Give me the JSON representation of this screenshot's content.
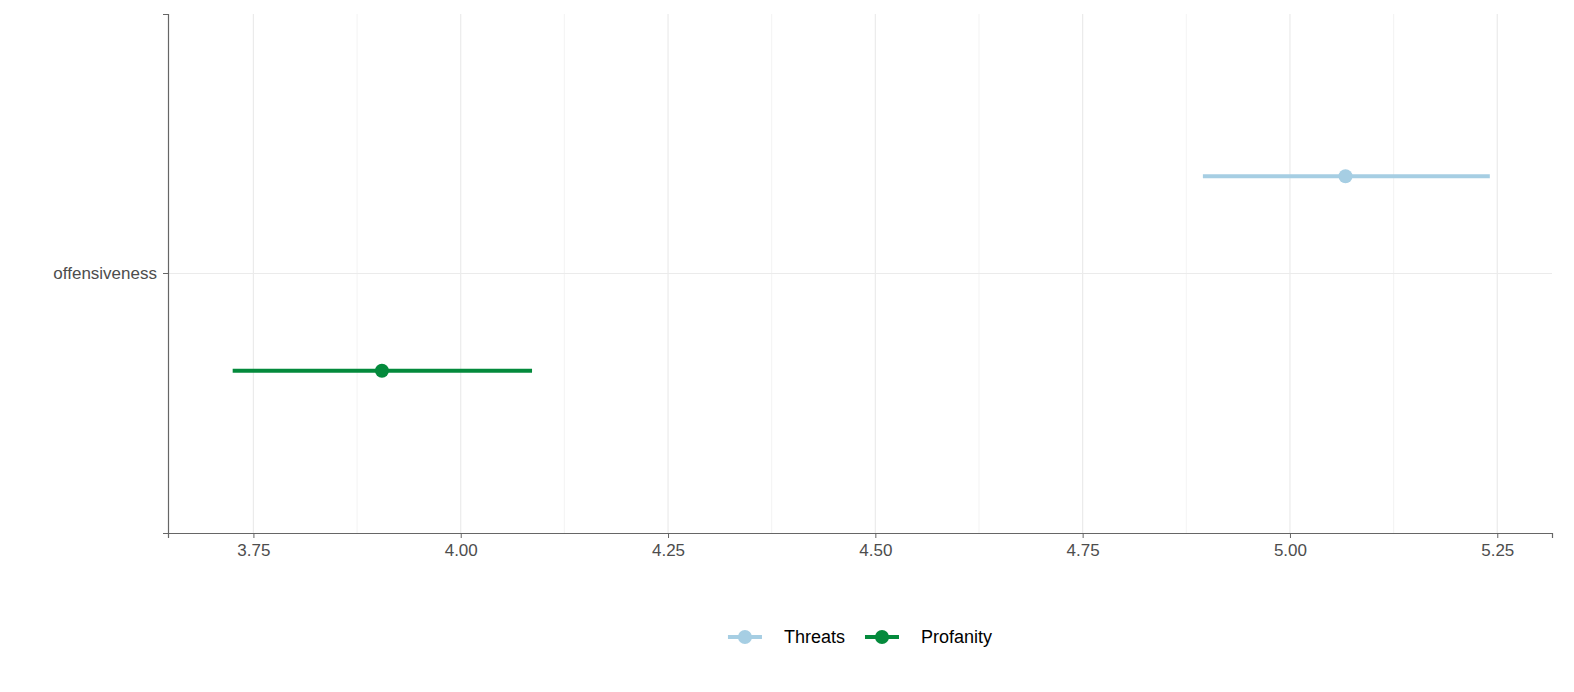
{
  "chart_data": {
    "type": "dot_whisker",
    "orientation": "horizontal",
    "categories": [
      "offensiveness"
    ],
    "series": [
      {
        "name": "Threats",
        "color": "#a6cee3",
        "values": [
          5.067
        ],
        "lower": [
          4.895
        ],
        "upper": [
          5.241
        ]
      },
      {
        "name": "Profanity",
        "color": "#048a3c",
        "values": [
          3.905
        ],
        "lower": [
          3.725
        ],
        "upper": [
          4.086
        ]
      }
    ],
    "xlim": [
      3.647,
      5.316
    ],
    "xticks": [
      3.75,
      {
        "value": 4,
        "label": "4.00"
      },
      4.25,
      {
        "value": 4.5,
        "label": "4.50"
      },
      4.75,
      {
        "value": 5,
        "label": "5.00"
      },
      5.25
    ],
    "grid": true,
    "legend": "bottom"
  }
}
